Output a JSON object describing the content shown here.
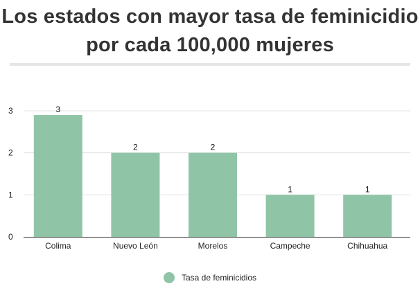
{
  "title": "Los estados con mayor tasa de feminicidio por cada 100,000 mujeres",
  "title_lines": [
    "Los estados con mayor tasa de feminicidio",
    "por cada 100,000 mujeres"
  ],
  "colors": {
    "bar": "#8fc5a6",
    "grid": "#e0e0e0",
    "axis": "#333333"
  },
  "chart_data": {
    "type": "bar",
    "categories": [
      "Colima",
      "Nuevo León",
      "Morelos",
      "Campeche",
      "Chihuahua"
    ],
    "series": [
      {
        "name": "Tasa de feminicidios",
        "values": [
          2.9,
          2.0,
          2.0,
          1.0,
          1.0
        ],
        "labels": [
          "3",
          "2",
          "2",
          "1",
          "1"
        ]
      }
    ],
    "y_ticks": [
      "0",
      "1",
      "2",
      "3"
    ],
    "ylim": [
      0,
      3
    ],
    "xlabel": "",
    "ylabel": "",
    "grid": "horizontal",
    "legend": "bottom-center"
  }
}
